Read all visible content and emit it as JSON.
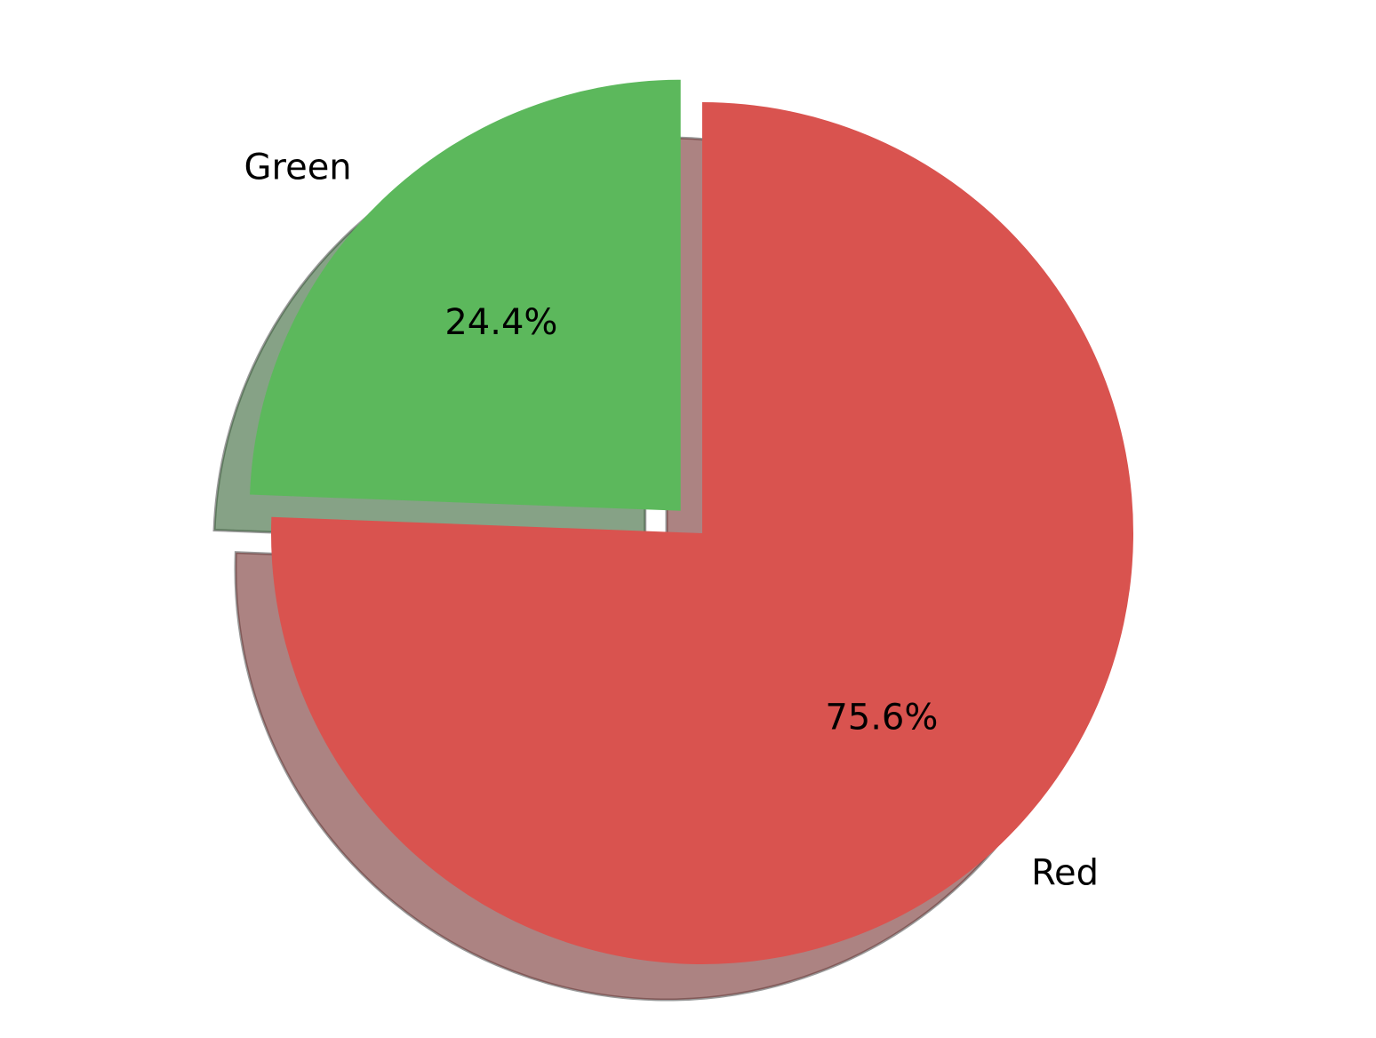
{
  "chart_data": {
    "type": "pie",
    "title": "",
    "slices": [
      {
        "label": "Red",
        "value": 75.6,
        "pct_label": "75.6%",
        "color": "#d9534f",
        "exploded": false
      },
      {
        "label": "Green",
        "value": 24.4,
        "pct_label": "24.4%",
        "color": "#5cb85c",
        "exploded": true
      }
    ],
    "start_angle_deg": 90,
    "direction": "clockwise",
    "shadow": true
  }
}
